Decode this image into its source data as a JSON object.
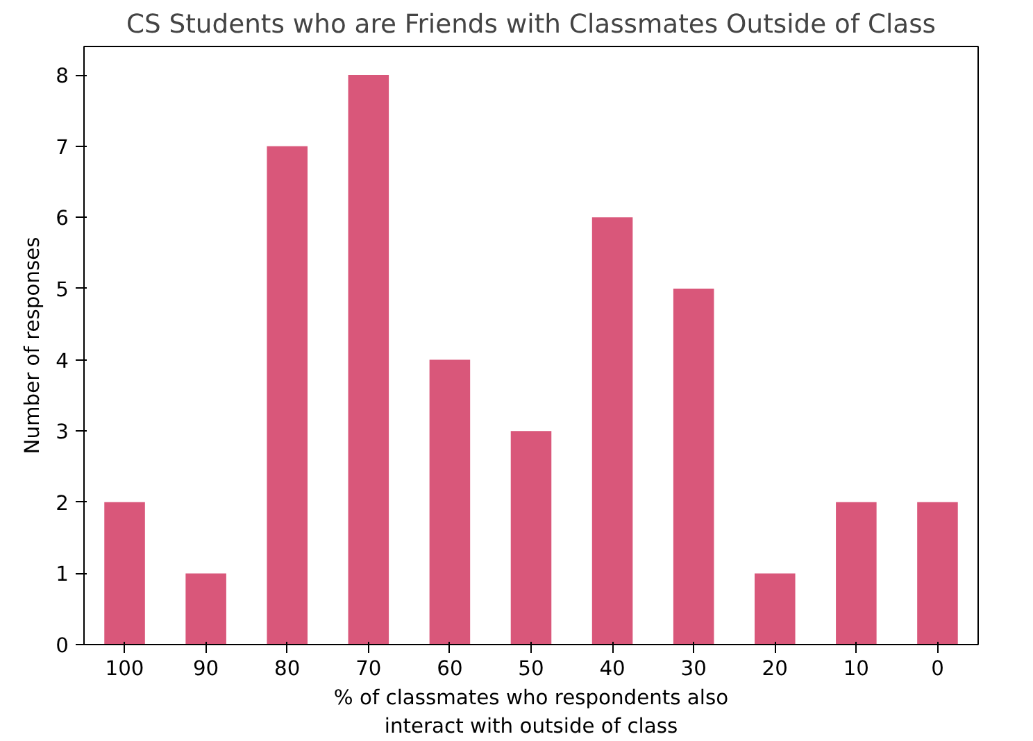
{
  "chart_data": {
    "type": "bar",
    "title": "CS Students who are Friends with Classmates Outside of Class",
    "xlabel": "% of classmates who respondents also\ninteract with outside of class",
    "ylabel": "Number of responses",
    "categories": [
      "100",
      "90",
      "80",
      "70",
      "60",
      "50",
      "40",
      "30",
      "20",
      "10",
      "0"
    ],
    "values": [
      2,
      1,
      7,
      8,
      4,
      3,
      6,
      5,
      1,
      2,
      2
    ],
    "color": "#d9577a",
    "ylim": [
      0,
      8.4
    ],
    "yticks": [
      0,
      1,
      2,
      3,
      4,
      5,
      6,
      7,
      8
    ],
    "grid": false
  }
}
